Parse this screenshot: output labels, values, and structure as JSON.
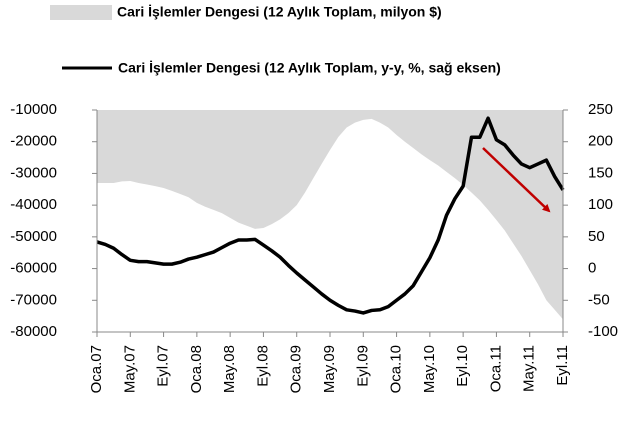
{
  "chart_data": {
    "type": "area-line",
    "categories": [
      "Oca.07",
      null,
      null,
      null,
      "May.07",
      null,
      null,
      null,
      "Eyl.07",
      null,
      null,
      null,
      "Oca.08",
      null,
      null,
      null,
      "May.08",
      null,
      null,
      null,
      "Eyl.08",
      null,
      null,
      null,
      "Oca.09",
      null,
      null,
      null,
      "May.09",
      null,
      null,
      null,
      "Eyl.09",
      null,
      null,
      null,
      "Oca.10",
      null,
      null,
      null,
      "May.10",
      null,
      null,
      null,
      "Eyl.10",
      null,
      null,
      null,
      "Oca.11",
      null,
      null,
      null,
      "May.11",
      null,
      null,
      null,
      "Eyl.11"
    ],
    "series": [
      {
        "name": "Cari İşlemler Dengesi (12 Aylık Toplam, milyon $)",
        "type": "area",
        "color": "#d9d9d9",
        "values": [
          -33000,
          -33000,
          -33000,
          -32500,
          -32400,
          -33000,
          -33500,
          -34000,
          -34600,
          -35500,
          -36500,
          -37500,
          -39300,
          -40500,
          -41500,
          -42500,
          -44000,
          -45500,
          -46500,
          -47500,
          -47200,
          -46000,
          -44500,
          -42500,
          -40000,
          -36000,
          -31500,
          -27000,
          -22600,
          -18500,
          -15500,
          -14000,
          -13100,
          -12800,
          -14000,
          -15500,
          -17900,
          -20000,
          -22000,
          -24000,
          -25800,
          -27500,
          -29500,
          -31500,
          -33600,
          -36000,
          -38500,
          -41500,
          -44700,
          -48000,
          -52000,
          -56000,
          -60500,
          -65000,
          -70000,
          -73000,
          -76000
        ]
      },
      {
        "name": "Cari İşlemler Dengesi (12 Aylık Toplam, y-y, %, sağ eksen)",
        "type": "line",
        "axis": "y2",
        "color": "#000000",
        "values": [
          42,
          38,
          32,
          22,
          13,
          11,
          11,
          9,
          7,
          7,
          10,
          15,
          18,
          22,
          26,
          33,
          40,
          45,
          45,
          46,
          37,
          28,
          18,
          5,
          -7,
          -18,
          -29,
          -40,
          -50,
          -58,
          -65,
          -67,
          -70,
          -66,
          -65,
          -60,
          -50,
          -40,
          -27,
          -5,
          17,
          45,
          84,
          110,
          130,
          207,
          207,
          237,
          203,
          195,
          179,
          165,
          159,
          165,
          171,
          145,
          124
        ]
      }
    ],
    "ylim": [
      -80000,
      -10000
    ],
    "yticks": [
      -80000,
      -70000,
      -60000,
      -50000,
      -40000,
      -30000,
      -20000,
      -10000
    ],
    "y_inverted_fill": true,
    "y2lim": [
      -100,
      250
    ],
    "y2ticks": [
      -100,
      -50,
      0,
      50,
      100,
      150,
      200,
      250
    ]
  }
}
